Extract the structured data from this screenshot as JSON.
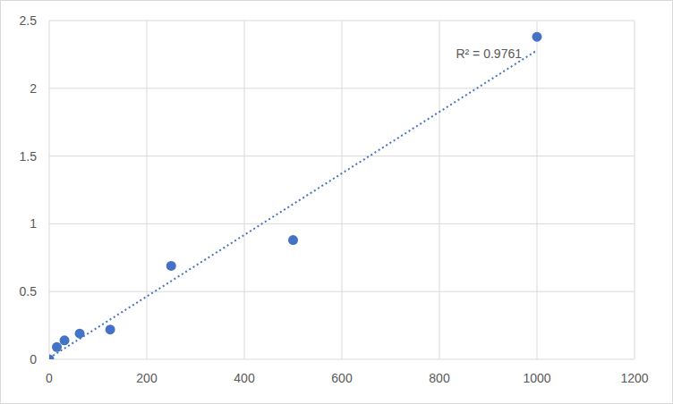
{
  "chart_data": {
    "type": "scatter",
    "annotation": "R² = 0.9761",
    "series": [
      {
        "type": "scatter",
        "marker": "circle",
        "color": "#4472c4",
        "x": [
          0,
          15.6,
          31.25,
          62.5,
          125,
          250,
          500,
          1000
        ],
        "values": [
          0,
          0.09,
          0.14,
          0.19,
          0.22,
          0.69,
          0.88,
          2.38
        ]
      },
      {
        "type": "line",
        "line_style": "dotted",
        "color": "#4472c4",
        "x": [
          0,
          1000
        ],
        "values": [
          0.01,
          2.28
        ]
      }
    ],
    "xlim": [
      0,
      1200
    ],
    "xticks": [
      0,
      200,
      400,
      600,
      800,
      1000,
      1200
    ],
    "ylim": [
      0,
      2.5
    ],
    "yticks": [
      0,
      0.5,
      1,
      1.5,
      2,
      2.5
    ],
    "grid": true
  }
}
